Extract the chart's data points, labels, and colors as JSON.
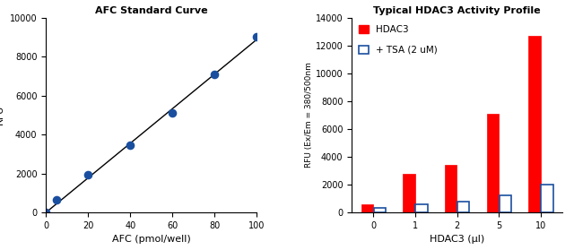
{
  "left": {
    "title": "AFC Standard Curve",
    "xlabel": "AFC (pmol/well)",
    "ylabel": "RFU",
    "x": [
      0,
      5,
      20,
      40,
      60,
      80,
      100
    ],
    "y": [
      0,
      650,
      1950,
      3450,
      5100,
      7100,
      9000
    ],
    "line_color": "#000000",
    "dot_color": "#1a4fa0",
    "xlim": [
      0,
      100
    ],
    "ylim": [
      0,
      10000
    ],
    "xticks": [
      0,
      20,
      40,
      60,
      80,
      100
    ],
    "yticks": [
      0,
      2000,
      4000,
      6000,
      8000,
      10000
    ]
  },
  "right": {
    "title": "Typical HDAC3 Activity Profile",
    "xlabel": "HDAC3 (µl)",
    "ylabel": "RFU (Ex/Em = 380/500nm",
    "categories": [
      "0",
      "1",
      "2",
      "5",
      "10"
    ],
    "hdac3_values": [
      600,
      2750,
      3450,
      7100,
      12700
    ],
    "tsa_values": [
      350,
      600,
      750,
      1200,
      2000
    ],
    "hdac3_color": "#ff0000",
    "tsa_color": "#ffffff",
    "tsa_edge_color": "#1a4fa0",
    "ylim": [
      0,
      14000
    ],
    "yticks": [
      0,
      2000,
      4000,
      6000,
      8000,
      10000,
      12000,
      14000
    ],
    "legend_hdac3": "HDAC3",
    "legend_tsa": "+ TSA (2 uM)"
  }
}
